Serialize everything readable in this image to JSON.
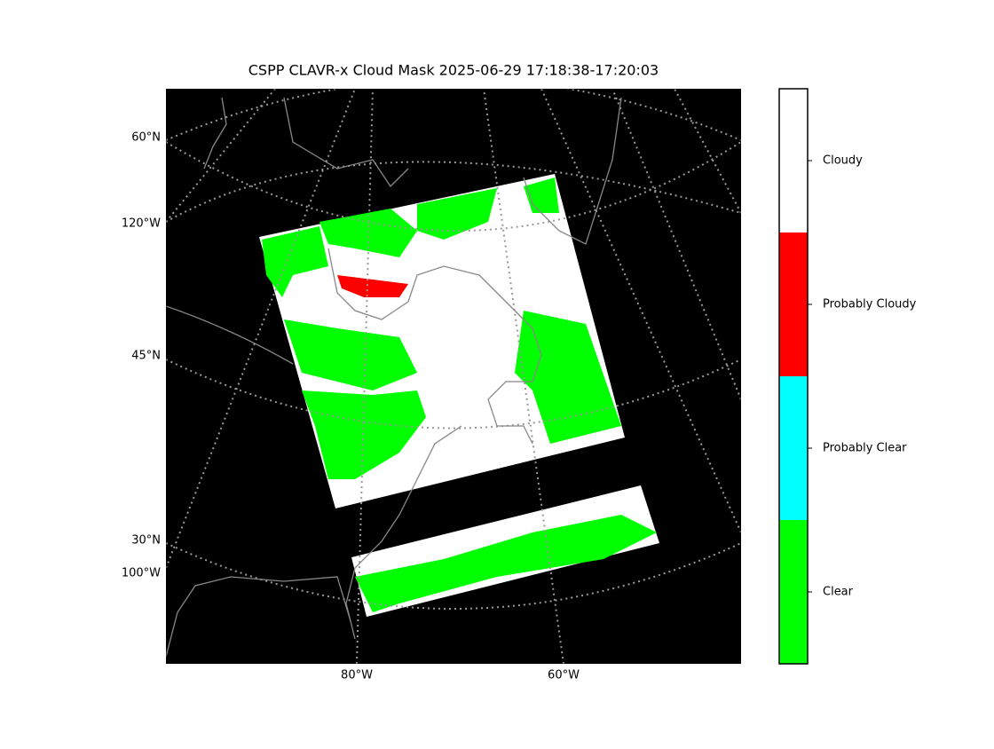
{
  "title": "CSPP CLAVR-x Cloud Mask 2025-06-29 17:18:38-17:20:03",
  "map": {
    "lat_labels": [
      "60°N",
      "45°N",
      "30°N"
    ],
    "lon_labels_left": [
      "120°W",
      "100°W"
    ],
    "lon_labels_bottom": [
      "80°W",
      "60°W"
    ]
  },
  "colorbar": {
    "classes": [
      {
        "label": "Clear",
        "color": "#00ff00"
      },
      {
        "label": "Probably Clear",
        "color": "#00ffff"
      },
      {
        "label": "Probably Cloudy",
        "color": "#ff0000"
      },
      {
        "label": "Cloudy",
        "color": "#ffffff"
      }
    ]
  }
}
